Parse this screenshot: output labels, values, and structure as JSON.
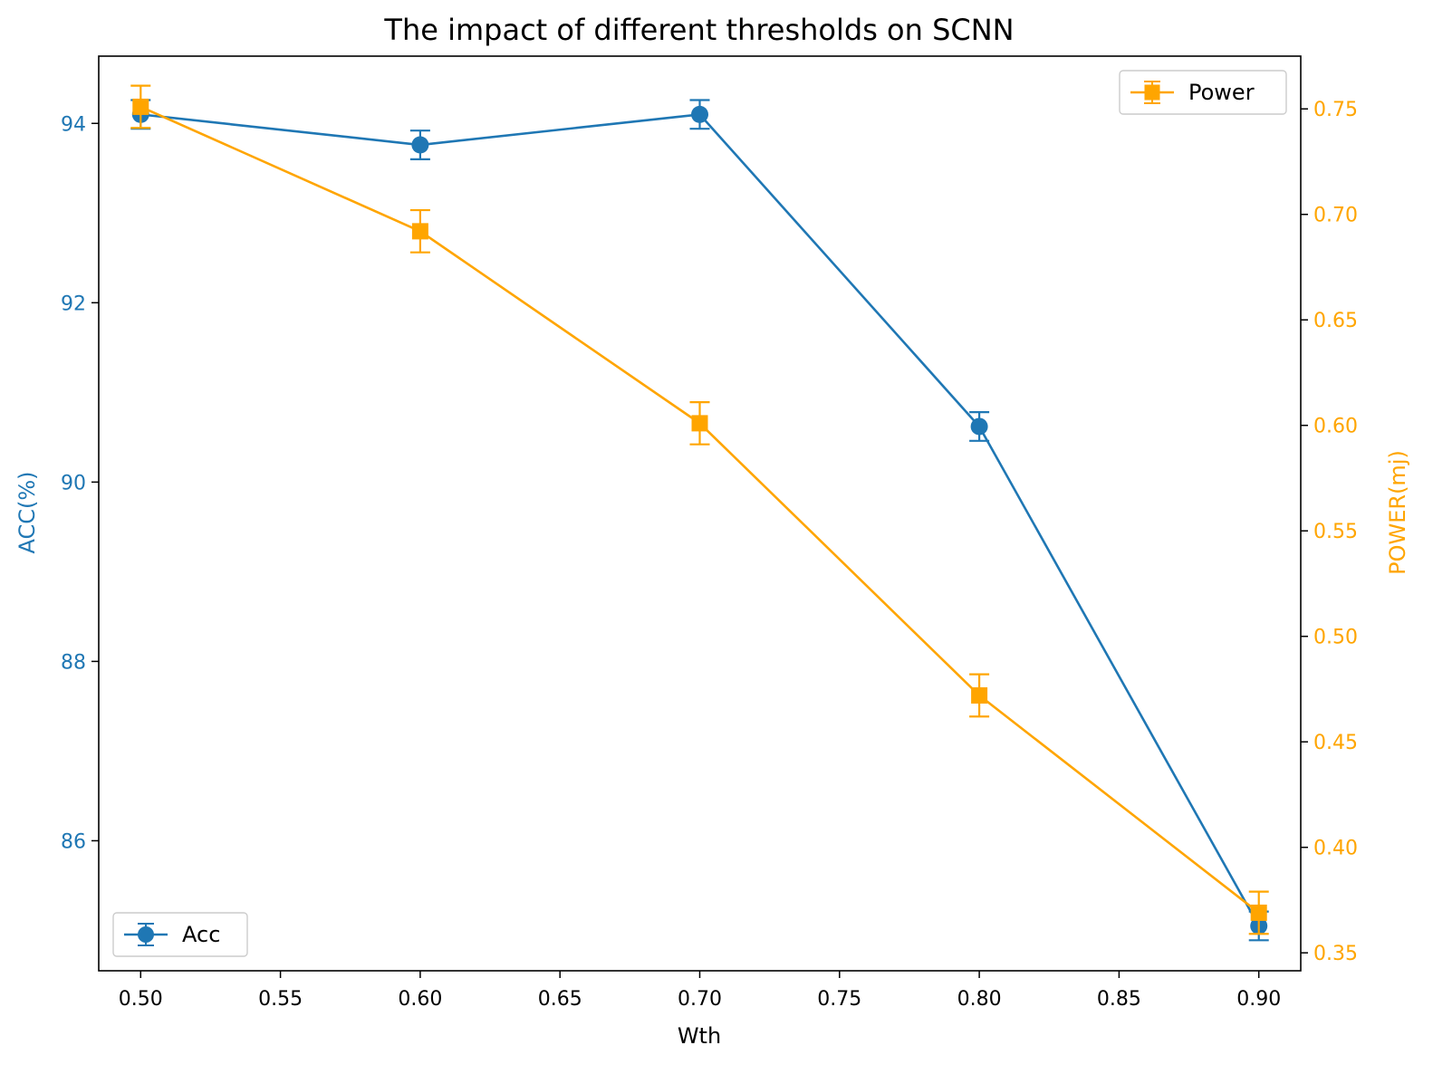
{
  "colors": {
    "acc": "#1f77b4",
    "power": "#ffa500",
    "axis": "#000000",
    "background": "#ffffff"
  },
  "chart_data": {
    "type": "line",
    "title": "The impact of different thresholds on SCNN",
    "xlabel": "Wth",
    "ylabel_left": "ACC(%)",
    "ylabel_right": "POWER(mj)",
    "xlim": [
      0.485,
      0.915
    ],
    "ylim_left": [
      84.55,
      94.75
    ],
    "ylim_right": [
      0.3415,
      0.775
    ],
    "xticks": [
      "0.50",
      "0.55",
      "0.60",
      "0.65",
      "0.70",
      "0.75",
      "0.80",
      "0.85",
      "0.90"
    ],
    "yticks_left": [
      "86",
      "88",
      "90",
      "92",
      "94"
    ],
    "yticks_right": [
      "0.35",
      "0.40",
      "0.45",
      "0.50",
      "0.55",
      "0.60",
      "0.65",
      "0.70",
      "0.75"
    ],
    "x": [
      0.5,
      0.6,
      0.7,
      0.8,
      0.9
    ],
    "series": [
      {
        "name": "Acc",
        "axis": "left",
        "marker": "circle",
        "values": [
          94.1,
          93.76,
          94.1,
          90.62,
          85.05
        ],
        "errors": [
          0.16,
          0.16,
          0.16,
          0.16,
          0.16
        ]
      },
      {
        "name": "Power",
        "axis": "right",
        "marker": "square",
        "values": [
          0.751,
          0.692,
          0.601,
          0.472,
          0.369
        ],
        "errors": [
          0.01,
          0.01,
          0.01,
          0.01,
          0.01
        ]
      }
    ],
    "legends": [
      {
        "series": "Power",
        "placement": "top-right"
      },
      {
        "series": "Acc",
        "placement": "bottom-left"
      }
    ]
  }
}
